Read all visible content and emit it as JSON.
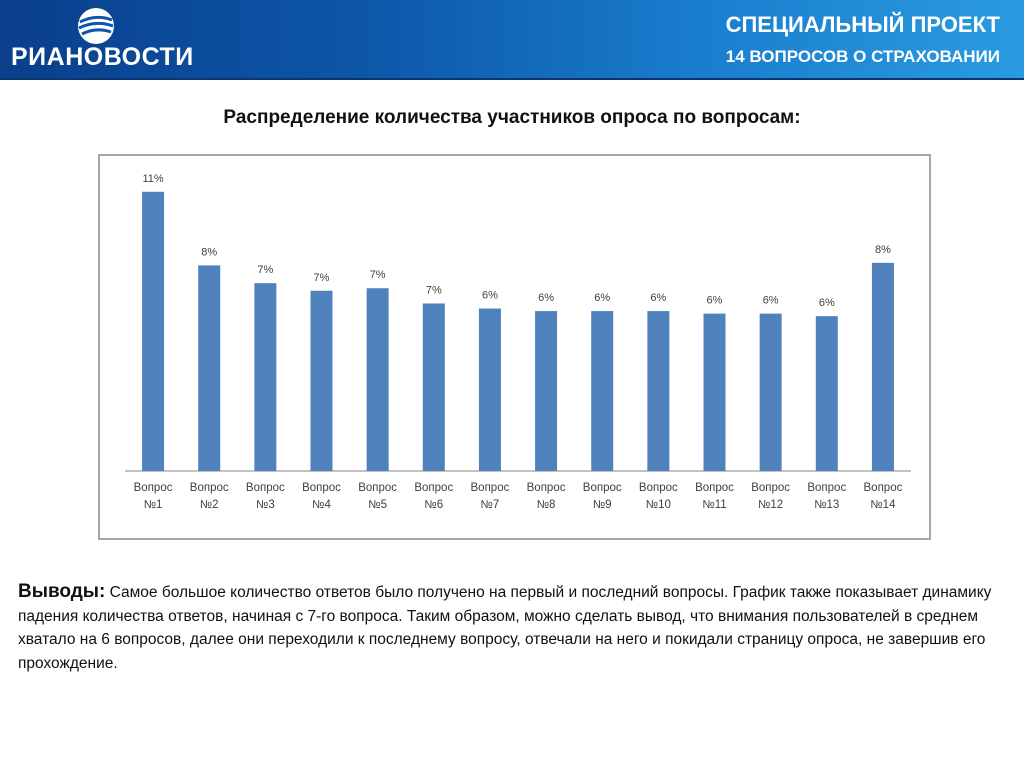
{
  "header": {
    "logo_text": "РИАНОВОСТИ",
    "title": "СПЕЦИАЛЬНЫЙ ПРОЕКТ",
    "subtitle": "14 ВОПРОСОВ О СТРАХОВАНИИ",
    "logo_icon": "ria-globe-icon"
  },
  "chart_heading": "Распределение количества участников опроса по вопросам:",
  "chart_data": {
    "type": "bar",
    "title": "",
    "xlabel": "",
    "ylabel": "",
    "categories": [
      "Вопрос №1",
      "Вопрос №2",
      "Вопрос №3",
      "Вопрос №4",
      "Вопрос №5",
      "Вопрос №6",
      "Вопрос №7",
      "Вопрос №8",
      "Вопрос №9",
      "Вопрос №10",
      "Вопрос №11",
      "Вопрос №12",
      "Вопрос №13",
      "Вопрос №14"
    ],
    "category_lines": [
      [
        "Вопрос",
        "№1"
      ],
      [
        "Вопрос",
        "№2"
      ],
      [
        "Вопрос",
        "№3"
      ],
      [
        "Вопрос",
        "№4"
      ],
      [
        "Вопрос",
        "№5"
      ],
      [
        "Вопрос",
        "№6"
      ],
      [
        "Вопрос",
        "№7"
      ],
      [
        "Вопрос",
        "№8"
      ],
      [
        "Вопрос",
        "№9"
      ],
      [
        "Вопрос",
        "№10"
      ],
      [
        "Вопрос",
        "№11"
      ],
      [
        "Вопрос",
        "№12"
      ],
      [
        "Вопрос",
        "№13"
      ],
      [
        "Вопрос",
        "№14"
      ]
    ],
    "values": [
      11.0,
      8.1,
      7.4,
      7.1,
      7.2,
      6.6,
      6.4,
      6.3,
      6.3,
      6.3,
      6.2,
      6.2,
      6.1,
      8.2
    ],
    "data_labels": [
      "11%",
      "8%",
      "7%",
      "7%",
      "7%",
      "7%",
      "6%",
      "6%",
      "6%",
      "6%",
      "6%",
      "6%",
      "6%",
      "8%"
    ],
    "ylim": [
      0,
      11.7
    ],
    "grid": false,
    "legend": "none",
    "bar_color": "#4f81bd"
  },
  "conclusions": {
    "label": "Выводы:",
    "text": " Самое большое количество ответов было получено на первый и последний вопросы. График также показывает динамику падения количества ответов, начиная с 7-го вопроса. Таким образом, можно сделать вывод, что внимания пользователей в среднем хватало на 6 вопросов, далее они переходили к последнему вопросу, отвечали на него и покидали страницу опроса, не завершив его прохождение."
  }
}
